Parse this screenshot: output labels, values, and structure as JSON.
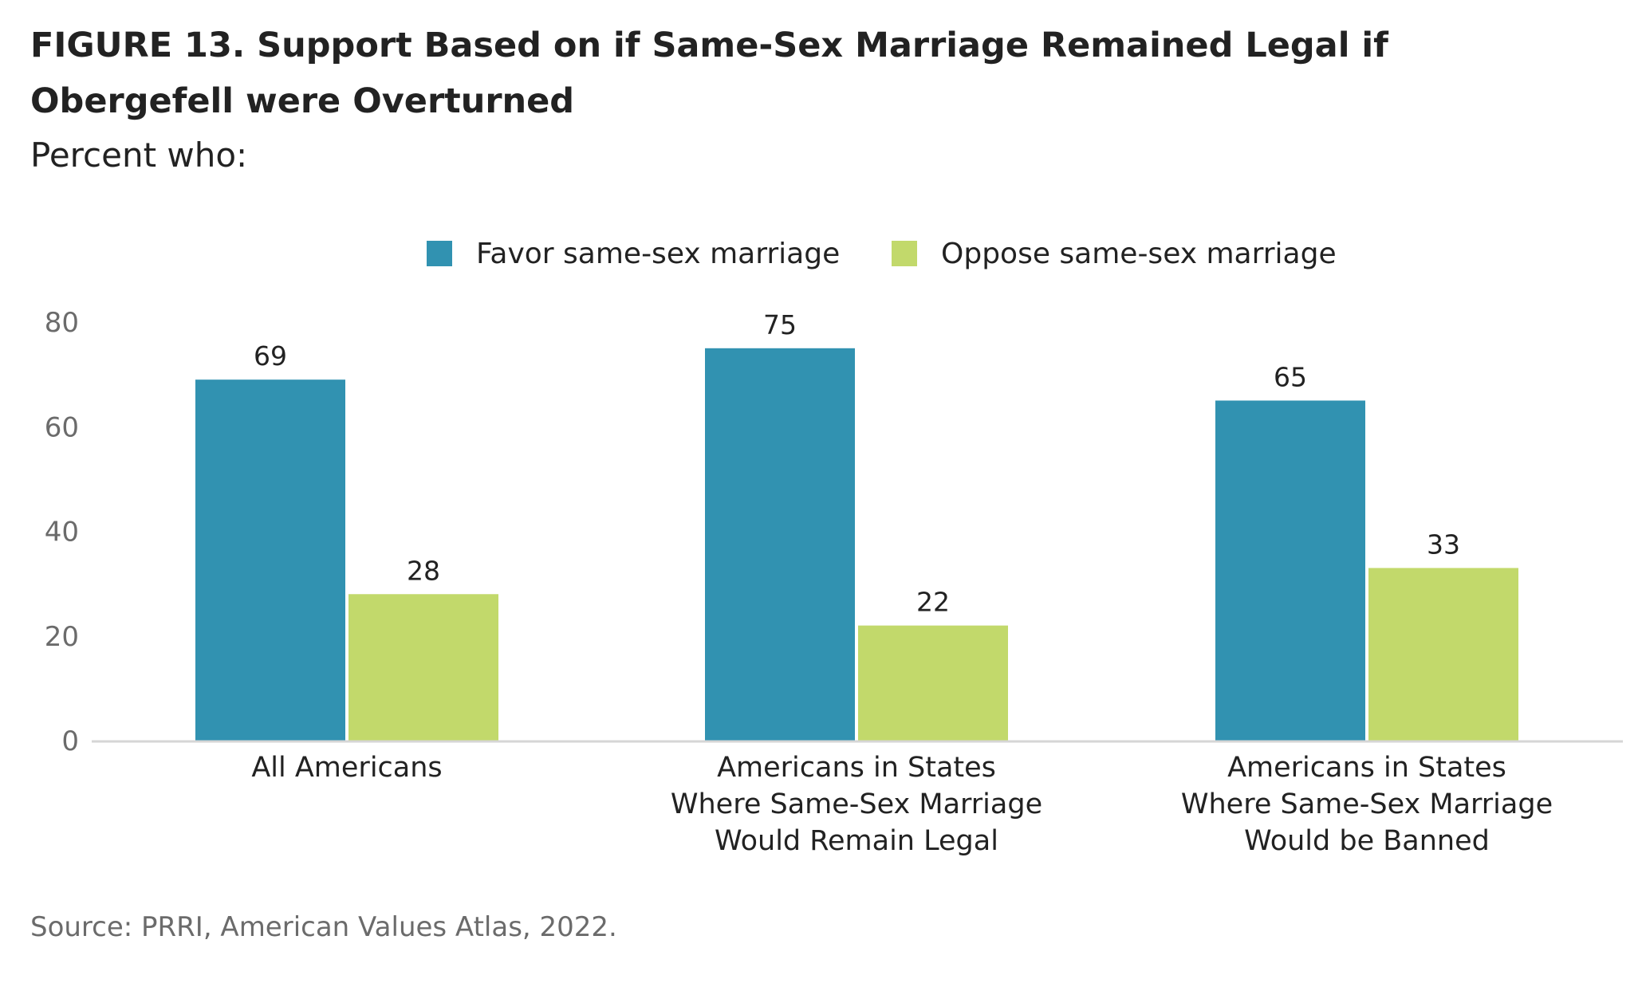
{
  "title": "FIGURE 13.  Support Based on if Same-Sex Marriage Remained Legal if Obergefell were Overturned",
  "subtitle": "Percent who:",
  "source": "Source: PRRI, American Values Atlas, 2022.",
  "colors": {
    "favor": "#3192b1",
    "oppose": "#c2d96b",
    "axis": "#d6d6d6",
    "tick_text": "#6b6b6b",
    "label_text": "#222222"
  },
  "chart_data": {
    "type": "bar",
    "title": "FIGURE 13.  Support Based on if Same-Sex Marriage Remained Legal if Obergefell were Overturned",
    "subtitle": "Percent who:",
    "categories": [
      [
        "All Americans"
      ],
      [
        "Americans in States",
        "Where Same-Sex Marriage",
        "Would Remain Legal"
      ],
      [
        "Americans in States",
        "Where Same-Sex Marriage",
        "Would be Banned"
      ]
    ],
    "series": [
      {
        "name": "Favor same-sex marriage",
        "color": "#3192b1",
        "values": [
          69,
          75,
          65
        ]
      },
      {
        "name": "Oppose same-sex marriage",
        "color": "#c2d96b",
        "values": [
          28,
          22,
          33
        ]
      }
    ],
    "ylim": [
      0,
      80
    ],
    "yticks": [
      0,
      20,
      40,
      60,
      80
    ],
    "xlabel": "",
    "ylabel": "",
    "grid": false,
    "legend": "top-center",
    "data_labels": true
  }
}
